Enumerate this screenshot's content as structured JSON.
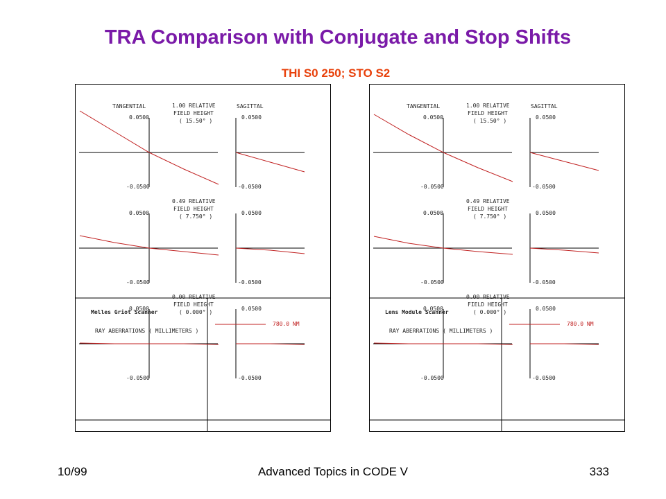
{
  "slide": {
    "title": "TRA Comparison with Conjugate and Stop Shifts",
    "subtitle": "THI S0 250; STO S2",
    "footer_left": "10/99",
    "footer_center": "Advanced Topics in CODE V",
    "footer_right": "333"
  },
  "colors": {
    "title": "#7a1aa8",
    "subtitle": "#e8400a",
    "curve": "#c02020",
    "axis": "#000000"
  },
  "chart_data": [
    {
      "type": "line",
      "title": "Melles Griot Scanner",
      "xlabel": "RAY ABERRATIONS ( MILLIMETERS )",
      "column_labels": {
        "tangential": "TANGENTIAL",
        "sagittal": "SAGITTAL"
      },
      "axis_labels": {
        "top": "0.0500",
        "bottom": "-0.0500"
      },
      "ylim": [
        -0.05,
        0.05
      ],
      "xlim": [
        -1,
        1
      ],
      "legend": [
        {
          "name": "780.0 NM",
          "color": "#c02020"
        }
      ],
      "fields": [
        {
          "rel": "1.00",
          "line1": "RELATIVE",
          "line2": "FIELD HEIGHT",
          "line3": "( 15.50° )",
          "tangential": {
            "x": [
              -1,
              -0.5,
              0,
              0.5,
              1
            ],
            "y": [
              0.06,
              0.03,
              0.0,
              -0.024,
              -0.046
            ]
          },
          "sagittal": {
            "x": [
              0,
              0.5,
              1
            ],
            "y": [
              0.0,
              -0.014,
              -0.028
            ]
          }
        },
        {
          "rel": "0.49",
          "line1": "RELATIVE",
          "line2": "FIELD HEIGHT",
          "line3": "( 7.750° )",
          "tangential": {
            "x": [
              -1,
              -0.5,
              0,
              0.5,
              1
            ],
            "y": [
              0.018,
              0.008,
              0.0,
              -0.005,
              -0.01
            ]
          },
          "sagittal": {
            "x": [
              0,
              0.5,
              1
            ],
            "y": [
              0.0,
              -0.003,
              -0.008
            ]
          }
        },
        {
          "rel": "0.00",
          "line1": "RELATIVE",
          "line2": "FIELD HEIGHT",
          "line3": "( 0.000° )",
          "tangential": {
            "x": [
              -1,
              -0.5,
              0,
              0.5,
              1
            ],
            "y": [
              0.001,
              0.0,
              0.0,
              0.0,
              -0.001
            ]
          },
          "sagittal": {
            "x": [
              0,
              0.5,
              1
            ],
            "y": [
              0.0,
              0.0,
              -0.001
            ]
          }
        }
      ]
    },
    {
      "type": "line",
      "title": "Lens Module Scanner",
      "xlabel": "RAY ABERRATIONS ( MILLIMETERS )",
      "column_labels": {
        "tangential": "TANGENTIAL",
        "sagittal": "SAGITTAL"
      },
      "axis_labels": {
        "top": "0.0500",
        "bottom": "-0.0500"
      },
      "ylim": [
        -0.05,
        0.05
      ],
      "xlim": [
        -1,
        1
      ],
      "legend": [
        {
          "name": "780.0 NM",
          "color": "#c02020"
        }
      ],
      "fields": [
        {
          "rel": "1.00",
          "line1": "RELATIVE",
          "line2": "FIELD HEIGHT",
          "line3": "( 15.50° )",
          "tangential": {
            "x": [
              -1,
              -0.5,
              0,
              0.5,
              1
            ],
            "y": [
              0.055,
              0.026,
              0.0,
              -0.022,
              -0.042
            ]
          },
          "sagittal": {
            "x": [
              0,
              0.5,
              1
            ],
            "y": [
              0.0,
              -0.013,
              -0.026
            ]
          }
        },
        {
          "rel": "0.49",
          "line1": "RELATIVE",
          "line2": "FIELD HEIGHT",
          "line3": "( 7.750° )",
          "tangential": {
            "x": [
              -1,
              -0.5,
              0,
              0.5,
              1
            ],
            "y": [
              0.017,
              0.007,
              0.0,
              -0.005,
              -0.009
            ]
          },
          "sagittal": {
            "x": [
              0,
              0.5,
              1
            ],
            "y": [
              0.0,
              -0.003,
              -0.007
            ]
          }
        },
        {
          "rel": "0.00",
          "line1": "RELATIVE",
          "line2": "FIELD HEIGHT",
          "line3": "( 0.000° )",
          "tangential": {
            "x": [
              -1,
              -0.5,
              0,
              0.5,
              1
            ],
            "y": [
              0.001,
              0.0,
              0.0,
              0.0,
              -0.001
            ]
          },
          "sagittal": {
            "x": [
              0,
              0.5,
              1
            ],
            "y": [
              0.0,
              0.0,
              -0.001
            ]
          }
        }
      ]
    }
  ]
}
